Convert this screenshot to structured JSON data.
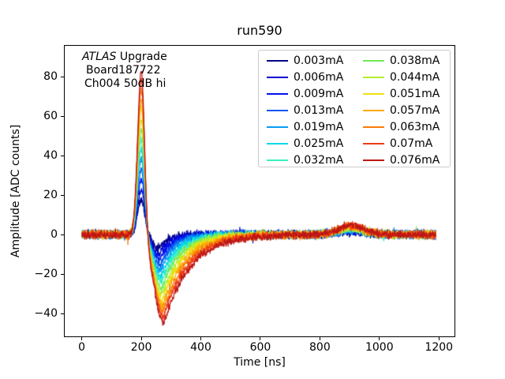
{
  "chart_data": {
    "type": "line",
    "title": "run590",
    "xlabel": "Time [ns]",
    "ylabel": "Amplitude [ADC counts]",
    "xlim": [
      -60,
      1255
    ],
    "ylim": [
      -52,
      96
    ],
    "xticks": [
      0,
      200,
      400,
      600,
      800,
      1000,
      1200
    ],
    "yticks": [
      -40,
      -20,
      0,
      20,
      40,
      60,
      80
    ],
    "grid": false,
    "legend": {
      "position": "upper right",
      "columns": 2,
      "border_color": "#cccccc"
    },
    "annotation": {
      "line1_italic": "ATLAS",
      "line1_rest": " Upgrade",
      "line2": "Board187722",
      "line3": "Ch004 50dB hi"
    },
    "waveform_model": {
      "t_start_ns": 0,
      "t_end_ns": 1190,
      "t_step_ns": 1,
      "peak_time_ns": 200,
      "peak_sigma_rise_ns": 12,
      "peak_sigma_fall_ns": 11,
      "undershoot_time_base_ns": 260,
      "undershoot_time_per_index_ns": 1.2,
      "undershoot_sigma_base_ns": 20,
      "undershoot_sigma_per_index_ns": 0.9,
      "recovery_tau_base_ns": 30,
      "recovery_tau_per_index_ns": 4.5,
      "bump_time_ns": 905,
      "bump_sigma_ns": 42,
      "noise_halfwidth_counts": 3
    },
    "series": [
      {
        "label": "0.003mA",
        "color": "#000080",
        "peak_amplitude": 18.0,
        "undershoot_min": -7.0,
        "bump_amplitude": 1.2
      },
      {
        "label": "0.006mA",
        "color": "#0000cd",
        "peak_amplitude": 23.2,
        "undershoot_min": -9.9,
        "bump_amplitude": 1.5
      },
      {
        "label": "0.009mA",
        "color": "#0011ee",
        "peak_amplitude": 28.3,
        "undershoot_min": -12.8,
        "bump_amplitude": 1.8
      },
      {
        "label": "0.013mA",
        "color": "#0455f0",
        "peak_amplitude": 33.5,
        "undershoot_min": -15.8,
        "bump_amplitude": 2.0
      },
      {
        "label": "0.019mA",
        "color": "#089bf0",
        "peak_amplitude": 38.6,
        "undershoot_min": -18.7,
        "bump_amplitude": 2.3
      },
      {
        "label": "0.025mA",
        "color": "#00d8e8",
        "peak_amplitude": 43.8,
        "undershoot_min": -21.6,
        "bump_amplitude": 2.6
      },
      {
        "label": "0.032mA",
        "color": "#38f0c0",
        "peak_amplitude": 48.9,
        "undershoot_min": -24.5,
        "bump_amplitude": 2.9
      },
      {
        "label": "0.038mA",
        "color": "#70e858",
        "peak_amplitude": 54.1,
        "undershoot_min": -27.5,
        "bump_amplitude": 3.2
      },
      {
        "label": "0.044mA",
        "color": "#b4ee2c",
        "peak_amplitude": 59.2,
        "undershoot_min": -30.4,
        "bump_amplitude": 3.4
      },
      {
        "label": "0.051mA",
        "color": "#f0e010",
        "peak_amplitude": 64.4,
        "undershoot_min": -33.3,
        "bump_amplitude": 3.7
      },
      {
        "label": "0.057mA",
        "color": "#fca80c",
        "peak_amplitude": 69.5,
        "undershoot_min": -36.2,
        "bump_amplitude": 4.0
      },
      {
        "label": "0.063mA",
        "color": "#f87c08",
        "peak_amplitude": 74.7,
        "undershoot_min": -39.2,
        "bump_amplitude": 4.3
      },
      {
        "label": "0.07mA",
        "color": "#ee3c14",
        "peak_amplitude": 80.0,
        "undershoot_min": -42.0,
        "bump_amplitude": 4.6
      },
      {
        "label": "0.076mA",
        "color": "#bc1616",
        "peak_amplitude": 85.0,
        "undershoot_min": -45.0,
        "bump_amplitude": 4.8
      }
    ]
  }
}
